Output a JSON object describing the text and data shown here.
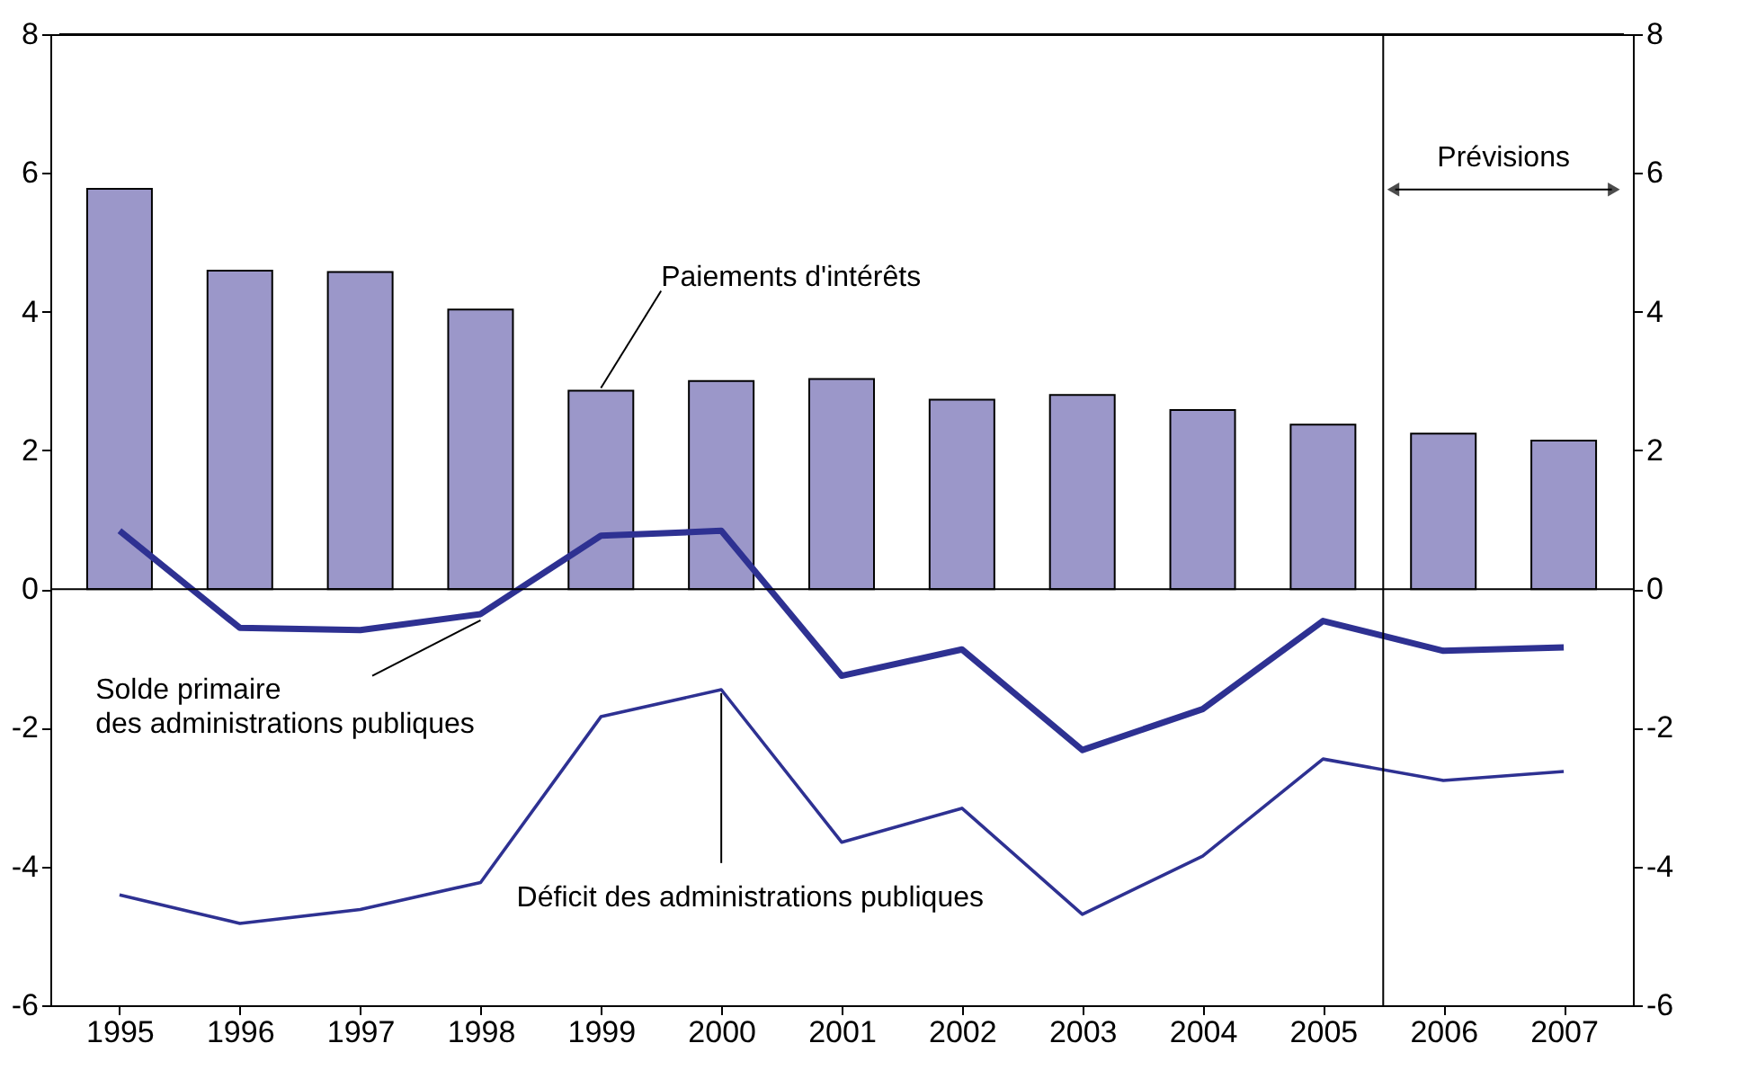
{
  "chart_data": {
    "type": "bar",
    "x": [
      1995,
      1996,
      1997,
      1998,
      1999,
      2000,
      2001,
      2002,
      2003,
      2004,
      2005,
      2006,
      2007
    ],
    "series": [
      {
        "color": "#9b97c9",
        "values": [
          5.77,
          4.59,
          4.57,
          4.03,
          2.86,
          3.0,
          3.03,
          2.73,
          2.8,
          2.58,
          2.37,
          2.24,
          2.14
        ]
      },
      {
        "type": "line",
        "color": "#2e3192",
        "values": [
          0.84,
          -0.56,
          -0.59,
          -0.36,
          0.77,
          0.84,
          -1.25,
          -0.87,
          -2.32,
          -1.73,
          -0.46,
          -0.89,
          -0.84
        ]
      },
      {
        "type": "line",
        "color": "#2e3192",
        "values": [
          -4.41,
          -4.82,
          -4.62,
          -4.23,
          -1.84,
          -1.45,
          -3.65,
          -3.16,
          -4.69,
          -3.85,
          -2.45,
          -2.76,
          -2.63
        ]
      }
    ],
    "xlim": [
      1994.5,
      2007.5
    ],
    "xticks": [
      1995,
      1996,
      1997,
      1998,
      1999,
      2000,
      2001,
      2002,
      2003,
      2004,
      2005,
      2006,
      2007
    ],
    "ylim": [
      -6,
      8
    ],
    "yticks": [
      -6,
      -4,
      -2,
      0,
      2,
      4,
      6,
      8
    ],
    "y2lim": [
      -6,
      8
    ],
    "y2ticks": [
      -6,
      -4,
      -2,
      0,
      2,
      4,
      6,
      8
    ],
    "ref_lines": [
      {
        "axis": "x",
        "value": 2005.5,
        "label": "Prévisions",
        "color": "#000000"
      },
      {
        "axis": "y",
        "value": 0,
        "color": "#000000"
      }
    ],
    "annotations": [
      {
        "text": "Paiements d'intérêts",
        "x": 1999,
        "y": 2.9
      },
      {
        "text": "Solde primaire\ndes administrations publiques",
        "x": 1998,
        "y": -0.45
      },
      {
        "text": "Déficit des administrations publiques",
        "x": 2000,
        "y": -1.5
      }
    ],
    "grid": false
  }
}
